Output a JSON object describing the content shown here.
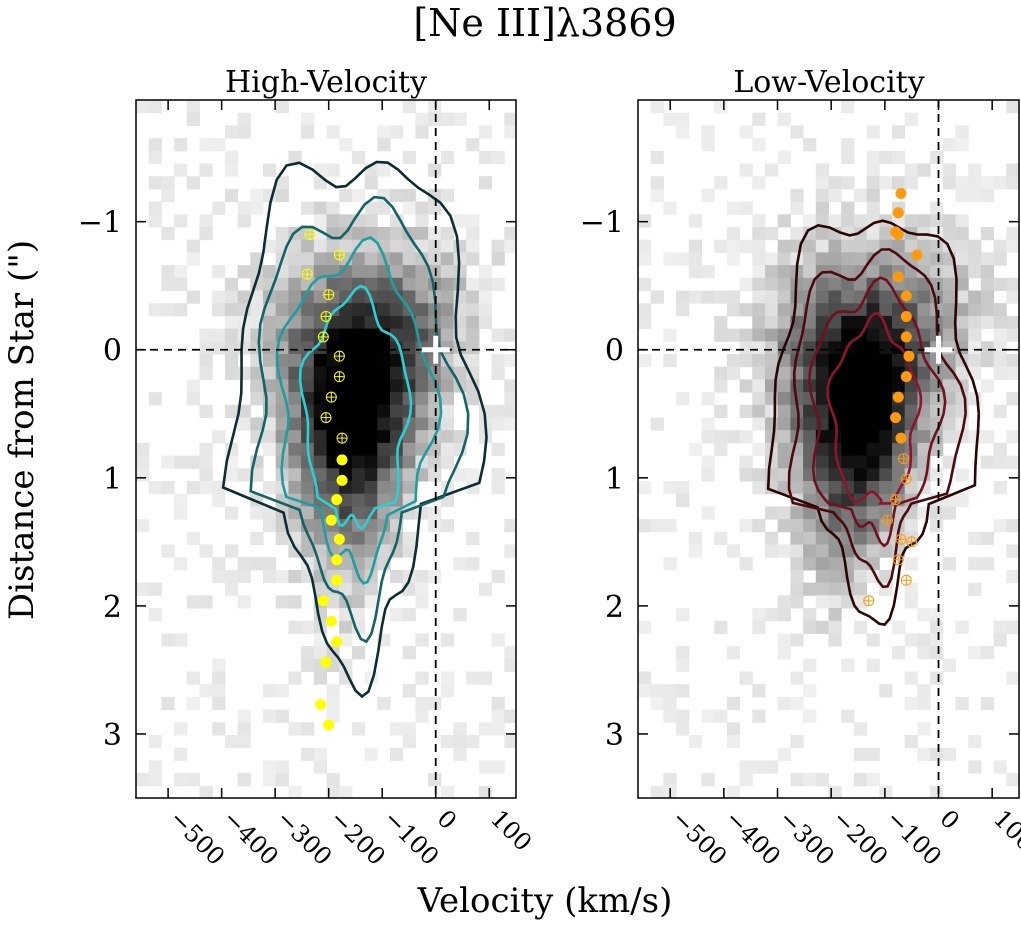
{
  "chart_data": [
    {
      "type": "heatmap",
      "title": "[Ne III]λ3869",
      "subtitle": "High-Velocity",
      "xlabel": "Velocity (km/s)",
      "ylabel": "Distance from Star (\")",
      "xlim": [
        -560,
        150
      ],
      "ylim": [
        -1.95,
        3.5
      ],
      "y_inverted": true,
      "xticks": [
        -500,
        -400,
        -300,
        -200,
        -100,
        0,
        100
      ],
      "yticks": [
        -1,
        0,
        1,
        2,
        3
      ],
      "contour_colors": [
        "#0b2e33",
        "#126466",
        "#1f9da0",
        "#2ad0d6"
      ],
      "marker_color": "#ffff00",
      "star_marker": {
        "x": 0,
        "y": 0
      },
      "points_filled": [
        {
          "x": -175,
          "y": 0.86
        },
        {
          "x": -175,
          "y": 1.02
        },
        {
          "x": -185,
          "y": 1.17
        },
        {
          "x": -195,
          "y": 1.33
        },
        {
          "x": -180,
          "y": 1.48
        },
        {
          "x": -185,
          "y": 1.64
        },
        {
          "x": -185,
          "y": 1.8
        },
        {
          "x": -210,
          "y": 1.96
        },
        {
          "x": -195,
          "y": 2.12
        },
        {
          "x": -185,
          "y": 2.28
        },
        {
          "x": -205,
          "y": 2.44
        },
        {
          "x": -215,
          "y": 2.77
        },
        {
          "x": -200,
          "y": 2.93
        }
      ],
      "points_open": [
        {
          "x": -235,
          "y": -0.9
        },
        {
          "x": -180,
          "y": -0.74
        },
        {
          "x": -240,
          "y": -0.59
        },
        {
          "x": -200,
          "y": -0.43
        },
        {
          "x": -205,
          "y": -0.26
        },
        {
          "x": -210,
          "y": -0.1
        },
        {
          "x": -180,
          "y": 0.05
        },
        {
          "x": -180,
          "y": 0.21
        },
        {
          "x": -195,
          "y": 0.37
        },
        {
          "x": -205,
          "y": 0.53
        },
        {
          "x": -175,
          "y": 0.69
        }
      ]
    },
    {
      "type": "heatmap",
      "subtitle": "Low-Velocity",
      "xlabel": "Velocity (km/s)",
      "xlim": [
        -560,
        150
      ],
      "ylim": [
        -1.95,
        3.5
      ],
      "y_inverted": true,
      "xticks": [
        -500,
        -400,
        -300,
        -200,
        -100,
        0,
        100
      ],
      "yticks": [
        -1,
        0,
        1,
        2,
        3
      ],
      "contour_colors": [
        "#2a0505",
        "#4a0a10",
        "#701020",
        "#8e1430"
      ],
      "marker_color": "#ff9a10",
      "star_marker": {
        "x": 0,
        "y": 0
      },
      "points_filled": [
        {
          "x": -70,
          "y": -1.22
        },
        {
          "x": -75,
          "y": -1.07
        },
        {
          "x": -75,
          "y": -0.9
        },
        {
          "x": -80,
          "y": -0.92
        },
        {
          "x": -40,
          "y": -0.74
        },
        {
          "x": -75,
          "y": -0.57
        },
        {
          "x": -60,
          "y": -0.42
        },
        {
          "x": -60,
          "y": -0.26
        },
        {
          "x": -60,
          "y": -0.1
        },
        {
          "x": -55,
          "y": 0.05
        },
        {
          "x": -60,
          "y": 0.21
        },
        {
          "x": -75,
          "y": 0.37
        },
        {
          "x": -80,
          "y": 0.53
        },
        {
          "x": -70,
          "y": 0.69
        }
      ],
      "points_open": [
        {
          "x": -65,
          "y": 0.85
        },
        {
          "x": -60,
          "y": 1.01
        },
        {
          "x": -80,
          "y": 1.17
        },
        {
          "x": -95,
          "y": 1.33
        },
        {
          "x": -70,
          "y": 1.48
        },
        {
          "x": -50,
          "y": 1.5
        },
        {
          "x": -75,
          "y": 1.64
        },
        {
          "x": -60,
          "y": 1.8
        },
        {
          "x": -130,
          "y": 1.96
        }
      ]
    }
  ]
}
